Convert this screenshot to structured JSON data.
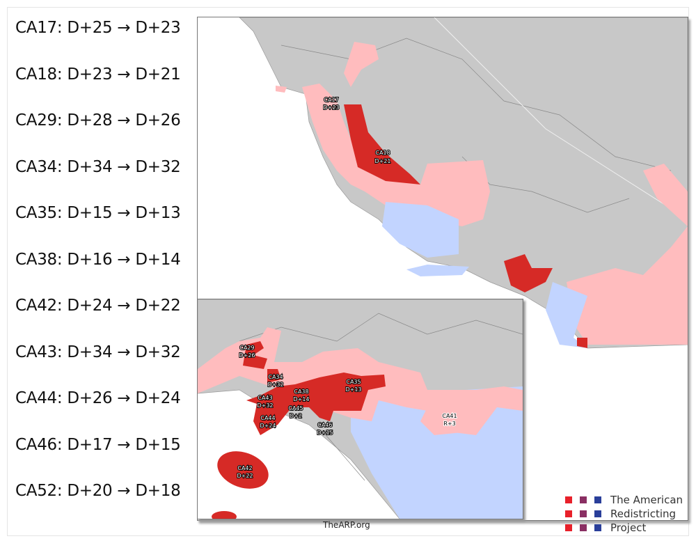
{
  "changes": [
    "CA17: D+25 → D+23",
    "CA18: D+23 → D+21",
    "CA29: D+28 → D+26",
    "CA34: D+34 → D+32",
    "CA35: D+15 → D+13",
    "CA38: D+16 → D+14",
    "CA42: D+24 → D+22",
    "CA43: D+34 → D+32",
    "CA44: D+26 → D+24",
    "CA46: D+17 → D+15",
    "CA52: D+20 → D+18"
  ],
  "main_map_labels": [
    {
      "district": "CA17",
      "lean": "D+23"
    },
    {
      "district": "CA18",
      "lean": "D+21"
    }
  ],
  "inset_labels": [
    {
      "district": "CA29",
      "lean": "D+26"
    },
    {
      "district": "CA34",
      "lean": "D+32"
    },
    {
      "district": "CA43",
      "lean": "D+32"
    },
    {
      "district": "CA38",
      "lean": "D+14"
    },
    {
      "district": "CA35",
      "lean": "D+13"
    },
    {
      "district": "CA45",
      "lean": "D+2"
    },
    {
      "district": "CA44",
      "lean": "D+24"
    },
    {
      "district": "CA46",
      "lean": "D+15"
    },
    {
      "district": "CA42",
      "lean": "D+22"
    },
    {
      "district": "CA41",
      "lean": "R+3"
    }
  ],
  "footer": "TheARP.org",
  "logo": {
    "lines": [
      "The American",
      "Redistricting",
      "Project"
    ],
    "colors": [
      "#e8202a",
      "#8a2f63",
      "#2a3f9a"
    ]
  },
  "colors": {
    "strong_dem": "#d62a26",
    "lean_dem": "#ffbcbe",
    "rep": "#c2d4ff",
    "other": "#c8c8c8"
  }
}
